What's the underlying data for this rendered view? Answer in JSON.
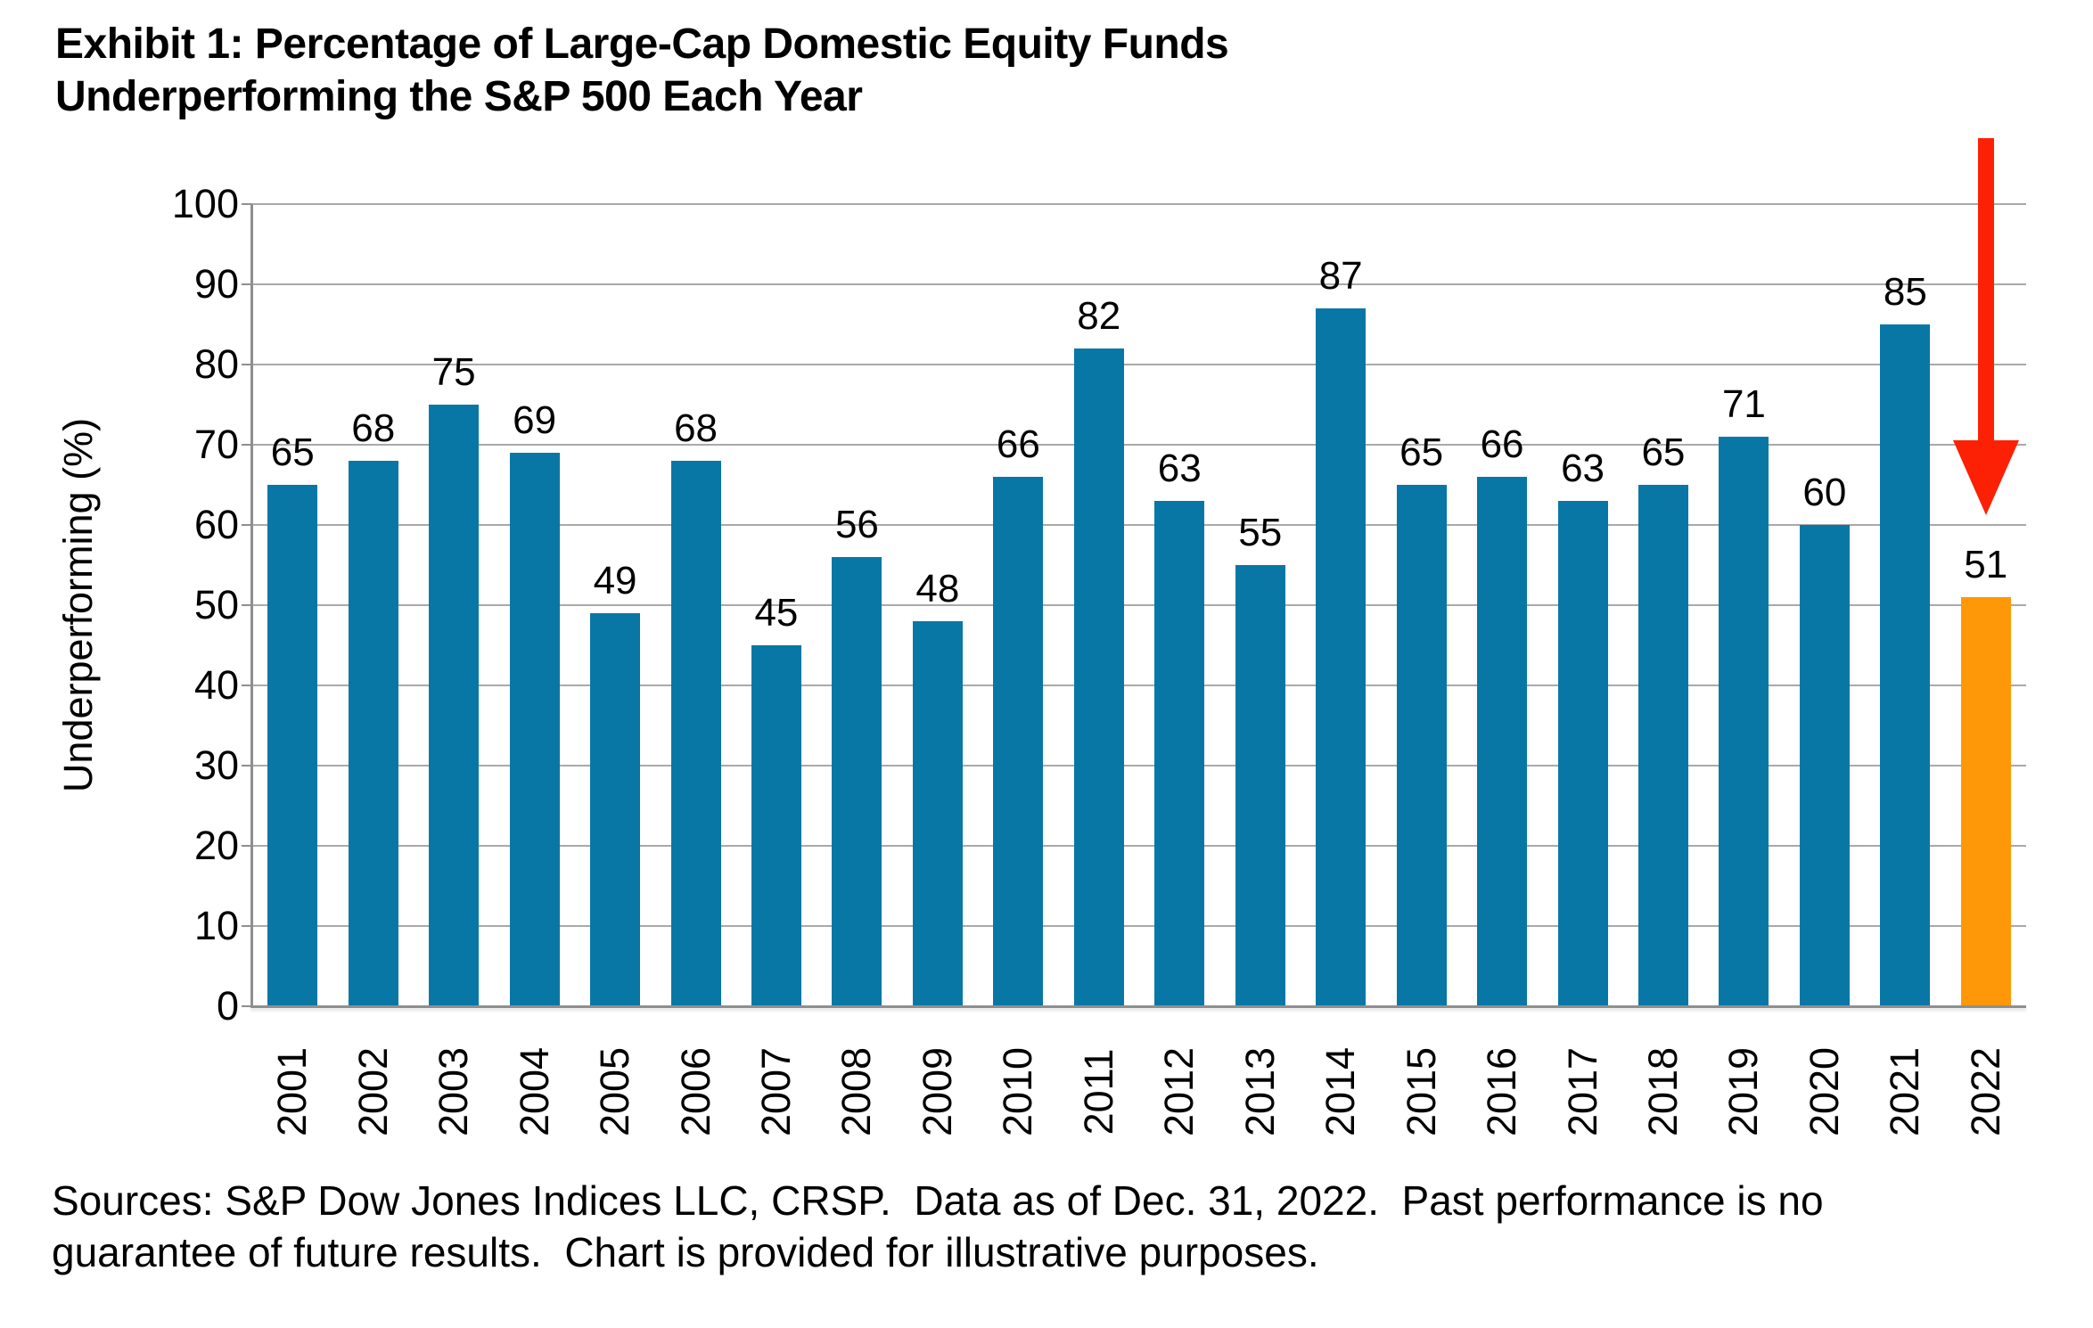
{
  "title": {
    "line1": "Exhibit 1: Percentage of Large-Cap Domestic Equity Funds",
    "line2": "Underperforming the S&P 500 Each Year"
  },
  "source_note": {
    "line1": "Sources: S&P Dow Jones Indices LLC, CRSP.  Data as of Dec. 31, 2022.  Past performance is no",
    "line2": "guarantee of future results.  Chart is provided for illustrative purposes."
  },
  "chart_data": {
    "type": "bar",
    "title": "Exhibit 1: Percentage of Large-Cap Domestic Equity Funds Underperforming the S&P 500 Each Year",
    "xlabel": "",
    "ylabel": "Underperforming (%)",
    "ylim": [
      0,
      100
    ],
    "ytick_step": 10,
    "grid": "horizontal",
    "legend": "none",
    "data_labels": true,
    "categories": [
      "2001",
      "2002",
      "2003",
      "2004",
      "2005",
      "2006",
      "2007",
      "2008",
      "2009",
      "2010",
      "2011",
      "2012",
      "2013",
      "2014",
      "2015",
      "2016",
      "2017",
      "2018",
      "2019",
      "2020",
      "2021",
      "2022"
    ],
    "values": [
      65,
      68,
      75,
      69,
      49,
      68,
      45,
      56,
      48,
      66,
      82,
      63,
      55,
      87,
      65,
      66,
      63,
      65,
      71,
      60,
      85,
      51
    ],
    "colors": {
      "bar": "#0877A6",
      "highlight_bar": "#FE9808",
      "gridline": "#A9A9A9",
      "axis": "#8F8F8F",
      "arrow": "#FC2105",
      "text": "#000000"
    },
    "highlight_index": 21,
    "annotation": {
      "type": "down-arrow",
      "target_category": "2022",
      "color": "#FC2105"
    }
  }
}
